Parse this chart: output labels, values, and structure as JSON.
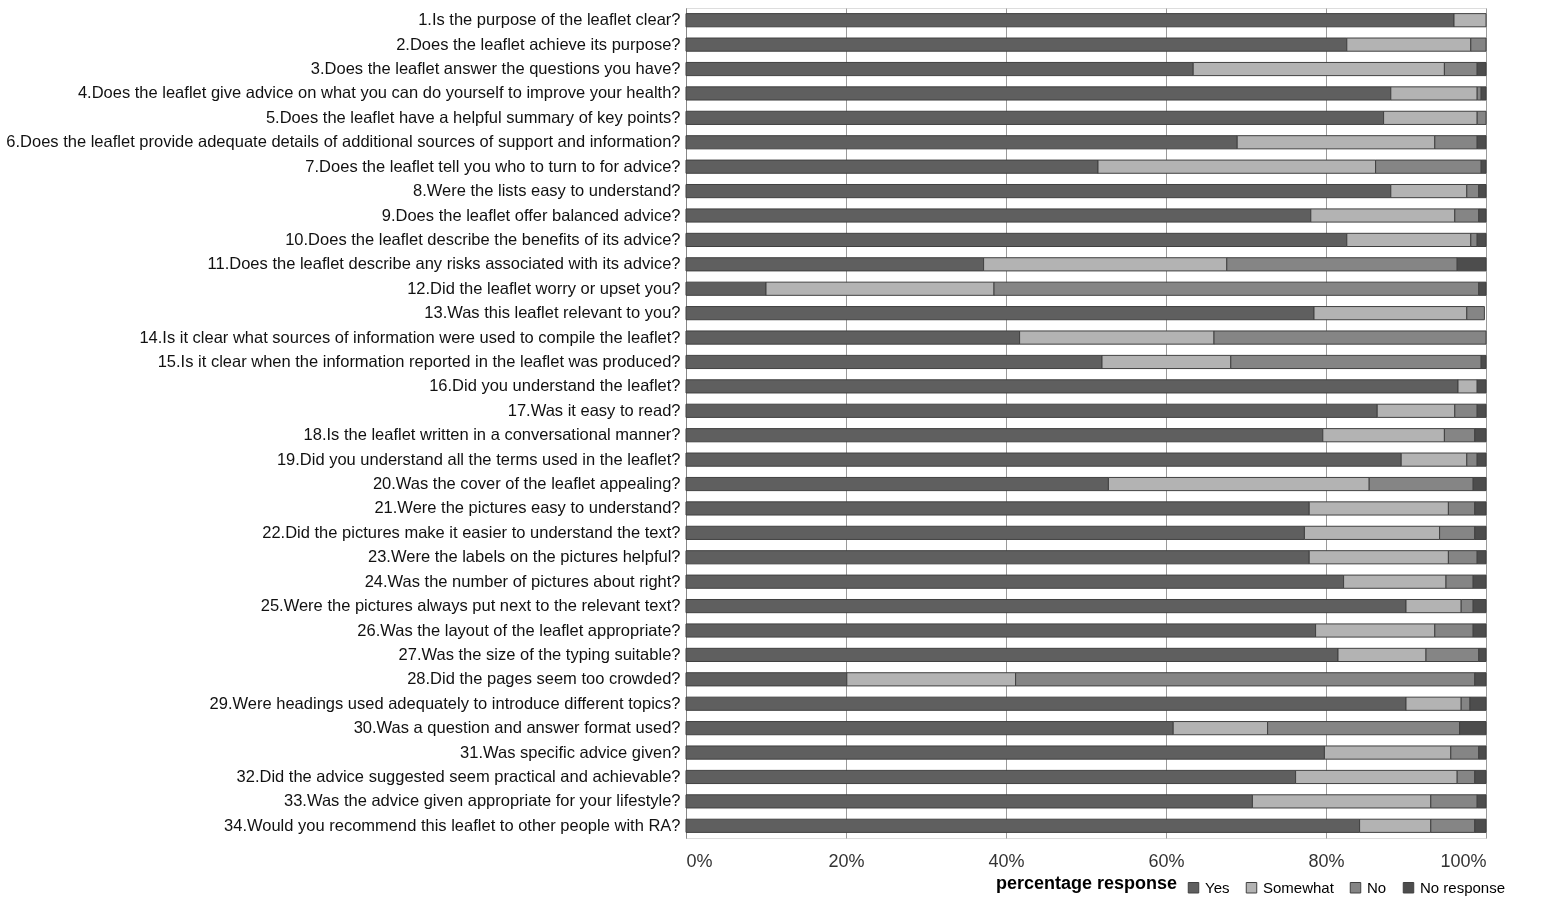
{
  "chart_data": {
    "type": "bar",
    "orientation": "horizontal",
    "stacked": true,
    "categories": [
      "1.Is the purpose of the leaflet clear?",
      "2.Does the leaflet achieve its purpose?",
      "3.Does the leaflet answer the questions you have?",
      "4.Does the leaflet give advice on what you can do yourself to improve your health?",
      "5.Does the leaflet have a helpful summary of key points?",
      "6.Does the leaflet provide adequate details of additional sources of support and information?",
      "7.Does the leaflet tell you who to turn to for advice?",
      "8.Were the lists easy to understand?",
      "9.Does the leaflet offer balanced advice?",
      "10.Does the leaflet describe the benefits of its advice?",
      "11.Does the leaflet describe any risks associated with its advice?",
      "12.Did the leaflet worry or upset you?",
      "13.Was this leaflet relevant to you?",
      "14.Is it clear what sources of information were used to compile the leaflet?",
      "15.Is it clear when the information reported in the leaflet was produced?",
      "16.Did you understand the leaflet?",
      "17.Was it easy to read?",
      "18.Is the leaflet written in a conversational manner?",
      "19.Did you understand all the terms used in the leaflet?",
      "20.Was the cover of the leaflet appealing?",
      "21.Were the pictures easy to understand?",
      "22.Did the pictures make it easier to understand the text?",
      "23.Were the labels on the pictures helpful?",
      "24.Was the number of pictures about right?",
      "25.Were the pictures always put next to the relevant text?",
      "26.Was the layout of the leaflet appropriate?",
      "27.Was the size of the typing suitable?",
      "28.Did the pages seem too crowded?",
      "29.Were headings used adequately to introduce different topics?",
      "30.Was a question and answer format used?",
      "31.Was specific advice given?",
      "32.Did the advice suggested seem practical and achievable?",
      "33.Was the advice given appropriate for your lifestyle?",
      "34.Would you recommend this leaflet to other people with RA?"
    ],
    "series": [
      {
        "name": "Yes",
        "color": "#5f5f5f",
        "values": [
          96.0,
          82.6,
          63.4,
          88.1,
          87.2,
          68.9,
          51.5,
          88.1,
          78.1,
          82.6,
          37.2,
          10.0,
          78.5,
          41.7,
          52.0,
          96.5,
          86.4,
          79.6,
          89.4,
          52.8,
          77.9,
          77.3,
          77.9,
          82.2,
          90.0,
          78.7,
          81.5,
          20.1,
          90.0,
          60.9,
          79.8,
          76.2,
          70.8,
          84.2
        ]
      },
      {
        "name": "Somewhat",
        "color": "#b3b3b3",
        "values": [
          4.0,
          15.5,
          31.4,
          10.8,
          11.7,
          24.7,
          34.7,
          9.5,
          18.0,
          15.5,
          30.4,
          28.5,
          19.1,
          24.3,
          16.1,
          2.4,
          9.7,
          15.2,
          8.2,
          32.6,
          17.4,
          16.9,
          17.4,
          12.8,
          6.9,
          14.9,
          11.0,
          21.1,
          6.9,
          11.8,
          15.8,
          20.2,
          22.3,
          8.9
        ]
      },
      {
        "name": "No",
        "color": "#858585",
        "values": [
          0,
          1.9,
          4.1,
          0.5,
          1.1,
          5.3,
          13.2,
          1.5,
          3.0,
          0.8,
          28.8,
          60.6,
          2.2,
          34.0,
          31.3,
          0,
          2.8,
          3.8,
          1.3,
          13.0,
          3.3,
          4.4,
          3.6,
          3.4,
          1.5,
          4.8,
          6.6,
          57.4,
          1.1,
          24.0,
          3.5,
          2.2,
          5.8,
          5.5
        ]
      },
      {
        "name": "No response",
        "color": "#4d4d4d",
        "values": [
          0,
          0,
          1.1,
          0.6,
          0,
          1.1,
          0.6,
          0.9,
          0.9,
          1.1,
          3.6,
          0.9,
          0,
          0,
          0.6,
          1.1,
          1.1,
          1.4,
          1.1,
          1.6,
          1.4,
          1.4,
          1.1,
          1.6,
          1.6,
          1.6,
          0.9,
          1.4,
          2.0,
          3.3,
          0.9,
          1.4,
          1.1,
          1.4
        ]
      }
    ],
    "xlabel": "percentage response",
    "xlim": [
      0,
      100
    ],
    "xticks": [
      {
        "value": 0,
        "label": "0%"
      },
      {
        "value": 20,
        "label": "20%"
      },
      {
        "value": 40,
        "label": "40%"
      },
      {
        "value": 60,
        "label": "60%"
      },
      {
        "value": 80,
        "label": "80%"
      },
      {
        "value": 100,
        "label": "100%"
      }
    ],
    "grid": "x",
    "legend": "bottom right"
  }
}
